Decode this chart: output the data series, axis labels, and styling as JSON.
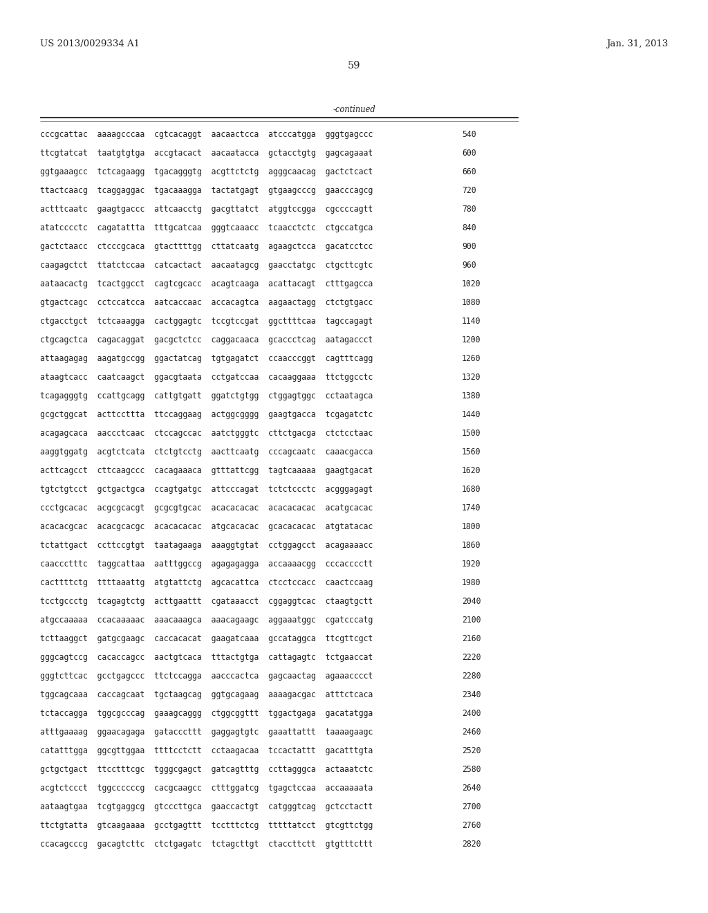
{
  "header_left": "US 2013/0029334 A1",
  "header_right": "Jan. 31, 2013",
  "page_number": "59",
  "continued_label": "-continued",
  "background_color": "#ffffff",
  "text_color": "#231f20",
  "font_size_header": 9.5,
  "font_size_page": 10.5,
  "font_size_body": 8.3,
  "sequence_lines": [
    [
      "cccgcattac  aaaagcccaa  cgtcacaggt  aacaactcca  atcccatgga  gggtgagccc",
      "540"
    ],
    [
      "ttcgtatcat  taatgtgtga  accgtacact  aacaatacca  gctacctgtg  gagcagaaat",
      "600"
    ],
    [
      "ggtgaaagcc  tctcagaagg  tgacagggtg  acgttctctg  agggcaacag  gactctcact",
      "660"
    ],
    [
      "ttactcaacg  tcaggaggac  tgacaaagga  tactatgagt  gtgaagcccg  gaacccagcg",
      "720"
    ],
    [
      "actttcaatc  gaagtgaccc  attcaacctg  gacgttatct  atggtccgga  cgccccagtt",
      "780"
    ],
    [
      "atatcccctc  cagatattta  tttgcatcaa  gggtcaaacc  tcaacctctc  ctgccatgca",
      "840"
    ],
    [
      "gactctaacc  ctcccgcaca  gtacttttgg  cttatcaatg  agaagctcca  gacatcctcc",
      "900"
    ],
    [
      "caagagctct  ttatctccaa  catcactact  aacaatagcg  gaacctatgc  ctgcttcgtc",
      "960"
    ],
    [
      "aataacactg  tcactggcct  cagtcgcacc  acagtcaaga  acattacagt  ctttgagcca",
      "1020"
    ],
    [
      "gtgactcagc  cctccatcca  aatcaccaac  accacagtca  aagaactagg  ctctgtgacc",
      "1080"
    ],
    [
      "ctgacctgct  tctcaaagga  cactggagtc  tccgtccgat  ggcttttcaa  tagccagagt",
      "1140"
    ],
    [
      "ctgcagctca  cagacaggat  gacgctctcc  caggacaaca  gcaccctcag  aatagaccct",
      "1200"
    ],
    [
      "attaagagag  aagatgccgg  ggactatcag  tgtgagatct  ccaacccggt  cagtttcagg",
      "1260"
    ],
    [
      "ataagtcacc  caatcaagct  ggacgtaata  cctgatccaa  cacaaggaaa  ttctggcctc",
      "1320"
    ],
    [
      "tcagagggtg  ccattgcagg  cattgtgatt  ggatctgtgg  ctggagtggc  cctaatagca",
      "1380"
    ],
    [
      "gcgctggcat  acttccttta  ttccaggaag  actggcgggg  gaagtgacca  tcgagatctc",
      "1440"
    ],
    [
      "acagagcaca  aaccctcaac  ctccagccac  aatctgggtc  cttctgacga  ctctcctaac",
      "1500"
    ],
    [
      "aaggtggatg  acgtctcata  ctctgtcctg  aacttcaatg  cccagcaatc  caaacgacca",
      "1560"
    ],
    [
      "acttcagcct  cttcaagccc  cacagaaaca  gtttattcgg  tagtcaaaaa  gaagtgacat",
      "1620"
    ],
    [
      "tgtctgtcct  gctgactgca  ccagtgatgc  attcccagat  tctctccctc  acgggagagt",
      "1680"
    ],
    [
      "ccctgcacac  acgcgcacgt  gcgcgtgcac  acacacacac  acacacacac  acatgcacac",
      "1740"
    ],
    [
      "acacacgcac  acacgcacgc  acacacacac  atgcacacac  gcacacacac  atgtatacac",
      "1800"
    ],
    [
      "tctattgact  ccttccgtgt  taatagaaga  aaaggtgtat  cctggagcct  acagaaaacc",
      "1860"
    ],
    [
      "caaccctttc  taggcattaa  aatttggccg  agagagagga  accaaaacgg  cccacccctt",
      "1920"
    ],
    [
      "cacttttctg  ttttaaattg  atgtattctg  agcacattca  ctcctccacc  caactccaag",
      "1980"
    ],
    [
      "tcctgccctg  tcagagtctg  acttgaattt  cgataaacct  cggaggtcac  ctaagtgctt",
      "2040"
    ],
    [
      "atgccaaaaa  ccacaaaaac  aaacaaagca  aaacagaagc  aggaaatggc  cgatcccatg",
      "2100"
    ],
    [
      "tcttaaggct  gatgcgaagc  caccacacat  gaagatcaaa  gccataggca  ttcgttcgct",
      "2160"
    ],
    [
      "gggcagtccg  cacaccagcc  aactgtcaca  tttactgtga  cattagagtc  tctgaaccat",
      "2220"
    ],
    [
      "gggtcttcac  gcctgagccc  ttctccagga  aacccactca  gagcaactag  agaaacccct",
      "2280"
    ],
    [
      "tggcagcaaa  caccagcaat  tgctaagcag  ggtgcagaag  aaaagacgac  atttctcaca",
      "2340"
    ],
    [
      "tctaccagga  tggcgcccag  gaaagcaggg  ctggcggttt  tggactgaga  gacatatgga",
      "2400"
    ],
    [
      "atttgaaaag  ggaacagaga  gatacccttt  gaggagtgtc  gaaattattt  taaaagaagc",
      "2460"
    ],
    [
      "catatttgga  ggcgttggaa  ttttcctctt  cctaagacaa  tccactattt  gacatttgta",
      "2520"
    ],
    [
      "gctgctgact  ttcctttcgc  tgggcgagct  gatcagtttg  ccttagggca  actaaatctc",
      "2580"
    ],
    [
      "acgtctccct  tggccccccg  cacgcaagcc  ctttggatcg  tgagctccaa  accaaaaata",
      "2640"
    ],
    [
      "aataagtgaa  tcgtgaggcg  gtcccttgca  gaaccactgt  catgggtcag  gctcctactt",
      "2700"
    ],
    [
      "ttctgtatta  gtcaagaaaa  gcctgagttt  tcctttctcg  tttttatcct  gtcgttctgg",
      "2760"
    ],
    [
      "ccacagcccg  gacagtcttc  ctctgagatc  tctagcttgt  ctaccttctt  gtgtttcttt",
      "2820"
    ]
  ]
}
